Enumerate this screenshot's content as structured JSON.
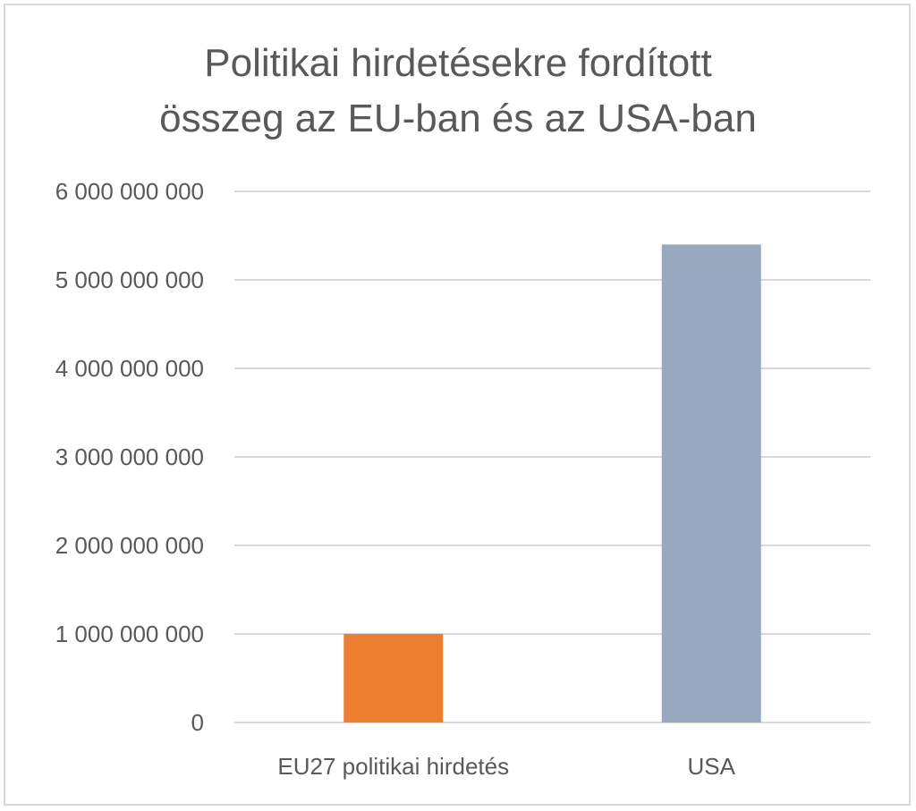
{
  "chart_data": {
    "type": "bar",
    "title": "Politikai hirdetésekre fordított összeg az EU-ban és az USA-ban",
    "title_lines": [
      "Politikai hirdetésekre fordított",
      "összeg az EU-ban és az USA-ban"
    ],
    "categories": [
      "EU27 politikai hirdetés",
      "USA"
    ],
    "values": [
      1000000000,
      5400000000
    ],
    "bar_colors": [
      "#ed7d31",
      "#9aa8bf"
    ],
    "ylim": [
      0,
      6000000000
    ],
    "yticks": [
      0,
      1000000000,
      2000000000,
      3000000000,
      4000000000,
      5000000000,
      6000000000
    ],
    "ytick_labels": [
      "0",
      "1 000 000 000",
      "2 000 000 000",
      "3 000 000 000",
      "4 000 000 000",
      "5 000 000 000",
      "6 000 000 000"
    ],
    "xlabel": "",
    "ylabel": "",
    "grid": true,
    "grid_color": "#d9d9d9",
    "text_color": "#595959"
  }
}
